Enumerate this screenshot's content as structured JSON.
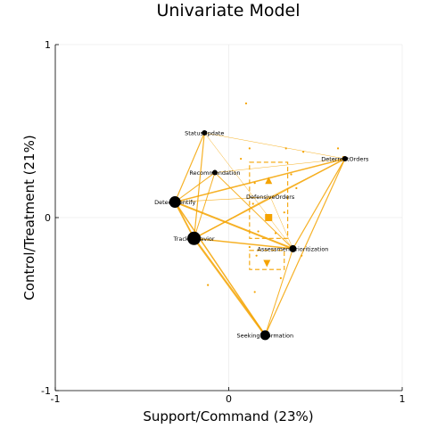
{
  "chart_data": {
    "type": "network-scatter",
    "title": "Univariate Model",
    "xlabel": "Support/Command (23%)",
    "ylabel": "Control/Treatment (21%)",
    "xlim": [
      -1,
      1
    ],
    "ylim": [
      -1,
      1
    ],
    "xticks": [
      "-1",
      "0",
      "1"
    ],
    "yticks": [
      "-1",
      "0",
      "1"
    ],
    "grid": true,
    "colors": {
      "edge": "#f5a300",
      "node": "#000000",
      "point": "#f5a300",
      "text": "#000000"
    },
    "nodes": [
      {
        "name": "StatusUpdate",
        "x": -0.14,
        "y": 0.49,
        "size": 3.0
      },
      {
        "name": "Recommendation",
        "x": -0.08,
        "y": 0.26,
        "size": 3.0
      },
      {
        "name": "DeterrentOrders",
        "x": 0.67,
        "y": 0.34,
        "size": 3.0
      },
      {
        "name": "DefensiveOrders",
        "x": 0.24,
        "y": 0.12,
        "size": 0.0
      },
      {
        "name": "DetectIdentify",
        "x": -0.31,
        "y": 0.09,
        "size": 6.5
      },
      {
        "name": "TrackBehavior",
        "x": -0.2,
        "y": -0.12,
        "size": 7.5
      },
      {
        "name": "AssessmentPrioritization",
        "x": 0.37,
        "y": -0.18,
        "size": 4.0
      },
      {
        "name": "SeekingInformation",
        "x": 0.21,
        "y": -0.68,
        "size": 5.5
      }
    ],
    "edges": [
      {
        "from": "StatusUpdate",
        "to": "DetectIdentify",
        "weight": 1.2
      },
      {
        "from": "StatusUpdate",
        "to": "TrackBehavior",
        "weight": 1.2
      },
      {
        "from": "StatusUpdate",
        "to": "DeterrentOrders",
        "weight": 0.5
      },
      {
        "from": "StatusUpdate",
        "to": "AssessmentPrioritization",
        "weight": 0.5
      },
      {
        "from": "Recommendation",
        "to": "DetectIdentify",
        "weight": 1.0
      },
      {
        "from": "Recommendation",
        "to": "TrackBehavior",
        "weight": 1.0
      },
      {
        "from": "Recommendation",
        "to": "DeterrentOrders",
        "weight": 0.5
      },
      {
        "from": "Recommendation",
        "to": "AssessmentPrioritization",
        "weight": 1.0
      },
      {
        "from": "DetectIdentify",
        "to": "DeterrentOrders",
        "weight": 1.5
      },
      {
        "from": "DetectIdentify",
        "to": "TrackBehavior",
        "weight": 1.8
      },
      {
        "from": "DetectIdentify",
        "to": "AssessmentPrioritization",
        "weight": 2.0
      },
      {
        "from": "DetectIdentify",
        "to": "SeekingInformation",
        "weight": 1.5
      },
      {
        "from": "DetectIdentify",
        "to": "DefensiveOrders",
        "weight": 0.6
      },
      {
        "from": "TrackBehavior",
        "to": "DeterrentOrders",
        "weight": 1.5
      },
      {
        "from": "TrackBehavior",
        "to": "AssessmentPrioritization",
        "weight": 1.5
      },
      {
        "from": "TrackBehavior",
        "to": "SeekingInformation",
        "weight": 2.2
      },
      {
        "from": "TrackBehavior",
        "to": "DefensiveOrders",
        "weight": 0.6
      },
      {
        "from": "DeterrentOrders",
        "to": "AssessmentPrioritization",
        "weight": 1.2
      },
      {
        "from": "DeterrentOrders",
        "to": "SeekingInformation",
        "weight": 1.2
      },
      {
        "from": "DeterrentOrders",
        "to": "DefensiveOrders",
        "weight": 0.5
      },
      {
        "from": "AssessmentPrioritization",
        "to": "SeekingInformation",
        "weight": 1.0
      },
      {
        "from": "AssessmentPrioritization",
        "to": "DefensiveOrders",
        "weight": 0.5
      }
    ],
    "points": [
      {
        "x": 0.1,
        "y": 0.66
      },
      {
        "x": 0.12,
        "y": 0.4
      },
      {
        "x": 0.33,
        "y": 0.4
      },
      {
        "x": 0.43,
        "y": 0.38
      },
      {
        "x": 0.63,
        "y": 0.4
      },
      {
        "x": 0.66,
        "y": 0.35
      },
      {
        "x": 0.07,
        "y": 0.34
      },
      {
        "x": 0.36,
        "y": 0.25
      },
      {
        "x": 0.15,
        "y": 0.2
      },
      {
        "x": 0.39,
        "y": 0.17
      },
      {
        "x": 0.14,
        "y": 0.08
      },
      {
        "x": 0.32,
        "y": 0.03
      },
      {
        "x": 0.17,
        "y": -0.08
      },
      {
        "x": 0.27,
        "y": -0.09
      },
      {
        "x": 0.12,
        "y": -0.17
      },
      {
        "x": 0.16,
        "y": -0.22
      },
      {
        "x": 0.42,
        "y": -0.22
      },
      {
        "x": 0.3,
        "y": -0.35
      },
      {
        "x": -0.12,
        "y": -0.39
      },
      {
        "x": 0.15,
        "y": -0.43
      }
    ],
    "centroids": [
      {
        "shape": "triangle-up",
        "x": 0.23,
        "y": 0.21
      },
      {
        "shape": "square",
        "x": 0.23,
        "y": 0.0
      },
      {
        "shape": "triangle-down",
        "x": 0.22,
        "y": -0.26
      }
    ],
    "intervals": [
      {
        "x0": 0.12,
        "x1": 0.34,
        "y0": -0.12,
        "y1": 0.32
      },
      {
        "x0": 0.12,
        "x1": 0.32,
        "y0": -0.3,
        "y1": -0.19
      }
    ]
  }
}
